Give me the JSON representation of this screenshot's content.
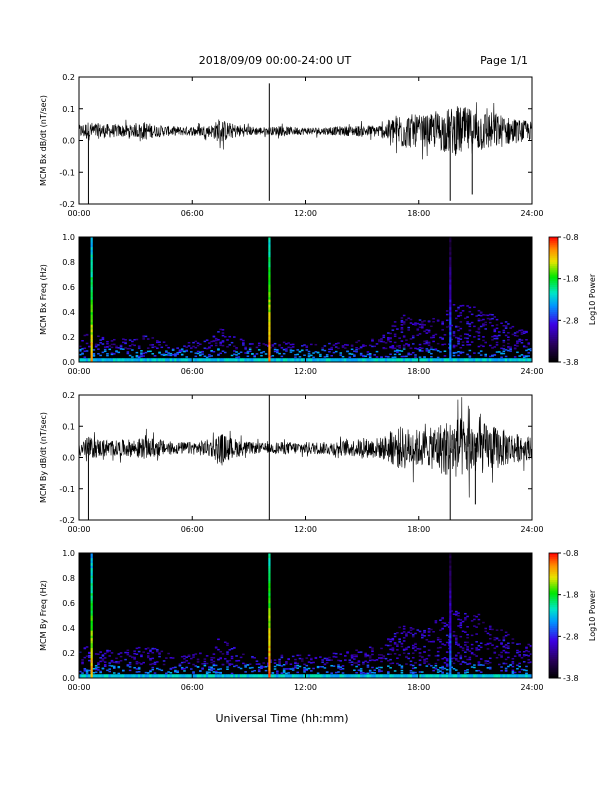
{
  "header": {
    "title": "2018/09/09  00:00-24:00 UT",
    "page": "Page 1/1"
  },
  "footer": {
    "xlabel": "Universal Time (hh:mm)"
  },
  "chart_data": [
    {
      "type": "line",
      "ylabel": "MCM Bx dB/dt (nT/sec)",
      "xlim": [
        "00:00",
        "24:00"
      ],
      "ylim": [
        -0.2,
        0.2
      ],
      "xticks": [
        "00:00",
        "06:00",
        "12:00",
        "18:00",
        "24:00"
      ],
      "yticks": [
        "-0.2",
        "-0.1",
        "0.0",
        "0.1",
        "0.2"
      ],
      "baseline": 0.03,
      "envelope": {
        "x": [
          "00:00",
          "00:30",
          "01:00",
          "02:00",
          "03:00",
          "03:30",
          "04:00",
          "05:00",
          "06:00",
          "07:00",
          "07:30",
          "08:00",
          "09:00",
          "10:00",
          "10:30",
          "12:00",
          "13:00",
          "14:00",
          "15:00",
          "16:00",
          "16:30",
          "17:00",
          "18:00",
          "18:30",
          "19:00",
          "19:30",
          "20:00",
          "21:00",
          "22:00",
          "23:00",
          "24:00"
        ],
        "amplitude": [
          0.02,
          0.03,
          0.025,
          0.02,
          0.02,
          0.03,
          0.02,
          0.015,
          0.015,
          0.02,
          0.04,
          0.025,
          0.015,
          0.012,
          0.015,
          0.012,
          0.012,
          0.015,
          0.018,
          0.02,
          0.04,
          0.06,
          0.05,
          0.05,
          0.06,
          0.07,
          0.08,
          0.07,
          0.06,
          0.04,
          0.03
        ]
      },
      "spikes": [
        {
          "x": "00:30",
          "y": -0.2
        },
        {
          "x": "10:05",
          "y": 0.18
        },
        {
          "x": "10:05",
          "y": -0.19
        },
        {
          "x": "19:40",
          "y": -0.19
        },
        {
          "x": "20:50",
          "y": -0.17
        }
      ]
    },
    {
      "type": "heatmap",
      "ylabel": "MCM Bx Freq (Hz)",
      "xlim": [
        "00:00",
        "24:00"
      ],
      "ylim": [
        0.0,
        1.0
      ],
      "xticks": [
        "00:00",
        "06:00",
        "12:00",
        "18:00",
        "24:00"
      ],
      "yticks": [
        "0.0",
        "0.2",
        "0.4",
        "0.6",
        "0.8",
        "1.0"
      ],
      "colorbar": {
        "label": "Log10 Power",
        "ticks": [
          "-0.8",
          "-1.8",
          "-2.8",
          "-3.8"
        ],
        "range": [
          -3.8,
          -0.8
        ]
      },
      "broadband_events": [
        {
          "x": "00:40",
          "power": -1.2
        },
        {
          "x": "10:05",
          "power": -1.0
        },
        {
          "x": "19:40",
          "power": -2.4
        }
      ]
    },
    {
      "type": "line",
      "ylabel": "MCM By dB/dt (nT/sec)",
      "xlim": [
        "00:00",
        "24:00"
      ],
      "ylim": [
        -0.2,
        0.2
      ],
      "xticks": [
        "00:00",
        "06:00",
        "12:00",
        "18:00",
        "24:00"
      ],
      "yticks": [
        "-0.2",
        "-0.1",
        "0.0",
        "0.1",
        "0.2"
      ],
      "baseline": 0.03,
      "envelope": {
        "x": [
          "00:00",
          "00:30",
          "01:00",
          "02:00",
          "03:00",
          "03:30",
          "04:00",
          "05:00",
          "06:00",
          "07:00",
          "07:30",
          "08:00",
          "09:00",
          "10:00",
          "10:30",
          "12:00",
          "13:00",
          "14:00",
          "15:00",
          "16:00",
          "16:30",
          "17:00",
          "18:00",
          "18:30",
          "19:00",
          "19:30",
          "20:00",
          "21:00",
          "22:00",
          "23:00",
          "24:00"
        ],
        "amplitude": [
          0.025,
          0.035,
          0.03,
          0.025,
          0.03,
          0.035,
          0.03,
          0.02,
          0.02,
          0.03,
          0.05,
          0.035,
          0.02,
          0.015,
          0.02,
          0.02,
          0.02,
          0.025,
          0.03,
          0.035,
          0.05,
          0.07,
          0.06,
          0.06,
          0.08,
          0.09,
          0.1,
          0.09,
          0.07,
          0.05,
          0.035
        ]
      },
      "spikes": [
        {
          "x": "00:30",
          "y": -0.2
        },
        {
          "x": "10:05",
          "y": 0.2
        },
        {
          "x": "10:05",
          "y": -0.2
        },
        {
          "x": "19:40",
          "y": -0.2
        },
        {
          "x": "21:00",
          "y": -0.15
        }
      ]
    },
    {
      "type": "heatmap",
      "ylabel": "MCM By Freq (Hz)",
      "xlim": [
        "00:00",
        "24:00"
      ],
      "ylim": [
        0.0,
        1.0
      ],
      "xticks": [
        "00:00",
        "06:00",
        "12:00",
        "18:00",
        "24:00"
      ],
      "yticks": [
        "0.0",
        "0.2",
        "0.4",
        "0.6",
        "0.8",
        "1.0"
      ],
      "colorbar": {
        "label": "Log10 Power",
        "ticks": [
          "-0.8",
          "-1.8",
          "-2.8",
          "-3.8"
        ],
        "range": [
          -3.8,
          -0.8
        ]
      },
      "broadband_events": [
        {
          "x": "00:40",
          "power": -1.2
        },
        {
          "x": "10:05",
          "power": -1.0
        },
        {
          "x": "19:40",
          "power": -2.4
        }
      ]
    }
  ]
}
